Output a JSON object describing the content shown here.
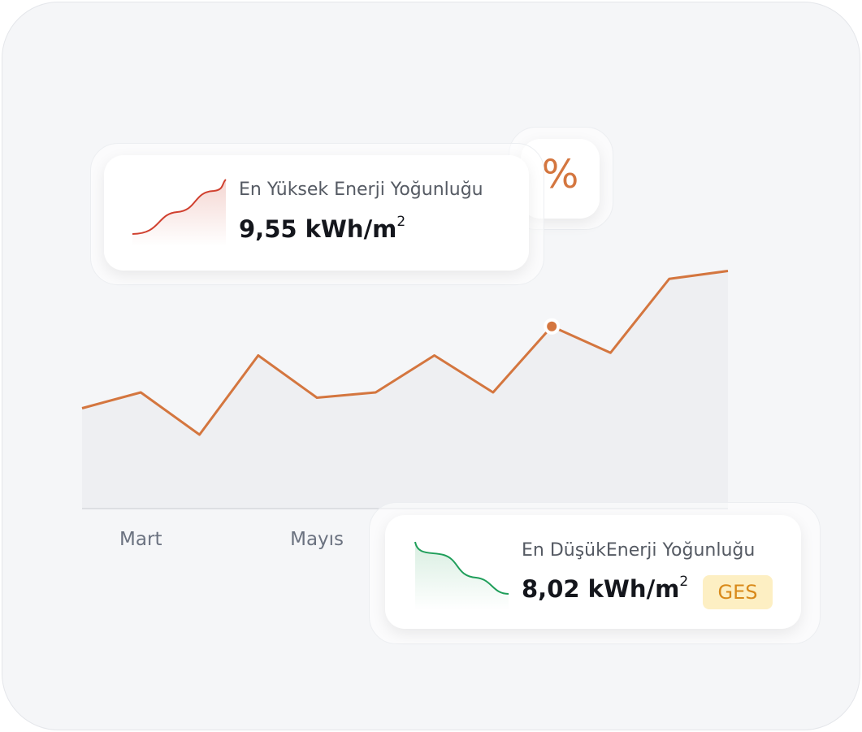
{
  "chart_data": {
    "type": "line",
    "categories": [
      null,
      "Mart",
      null,
      null,
      "Mayıs",
      null,
      null,
      null,
      null,
      null,
      null,
      null
    ],
    "series": [
      {
        "color": "#d4763f",
        "values": [
          38,
          44,
          28,
          58,
          42,
          44,
          58,
          44,
          69,
          59,
          87,
          90
        ]
      }
    ],
    "ylim": [
      0,
      100
    ],
    "marker_index": 8,
    "fill": "#eeeff2"
  },
  "high_card": {
    "title": "En Yüksek Enerji Yoğunluğu",
    "value": "9,55 kWh/m",
    "exponent": "2"
  },
  "icon_card": {
    "symbol": "%"
  },
  "low_card": {
    "title": "En DüşükEnerji Yoğunluğu",
    "value": "8,02 kWh/m",
    "exponent": "2",
    "badge": "GES"
  }
}
